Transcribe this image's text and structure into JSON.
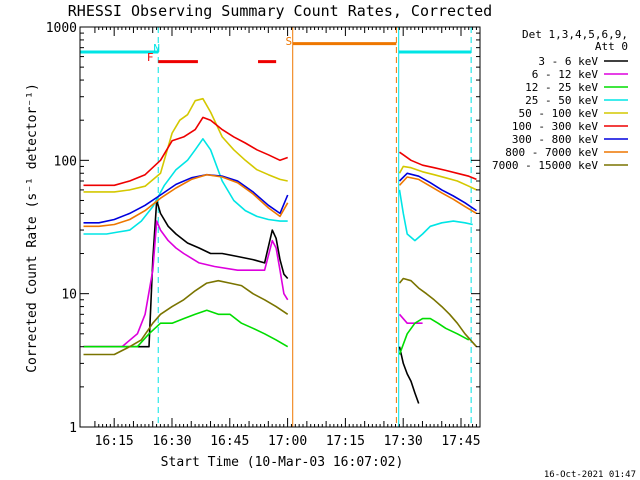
{
  "chart_data": {
    "type": "line",
    "title": "RHESSI Observing Summary Count Rates, Corrected",
    "xlabel": "Start Time (10-Mar-03 16:07:02)",
    "ylabel": "Corrected Count Rate (s⁻¹ detector⁻¹)",
    "y_scale": "log",
    "ylim": [
      1,
      1000
    ],
    "xlim_minutes": [
      -0.9,
      102.9
    ],
    "x_ticks": [
      {
        "label": "16:15",
        "minutes": 7.97
      },
      {
        "label": "16:30",
        "minutes": 22.97
      },
      {
        "label": "16:45",
        "minutes": 37.97
      },
      {
        "label": "17:00",
        "minutes": 52.97
      },
      {
        "label": "17:15",
        "minutes": 67.97
      },
      {
        "label": "17:30",
        "minutes": 82.97
      },
      {
        "label": "17:45",
        "minutes": 97.97
      }
    ],
    "y_ticks": [
      {
        "label": "1",
        "value": 1
      },
      {
        "label": "10",
        "value": 10
      },
      {
        "label": "100",
        "value": 100
      },
      {
        "label": "1000",
        "value": 1000
      }
    ],
    "legend_header": [
      "Det 1,3,4,5,6,9,",
      "Att 0"
    ],
    "legend_position": "right",
    "grid": false,
    "series": [
      {
        "name": "3 - 6 keV",
        "color": "#000000",
        "x": [
          0,
          4,
          10,
          17,
          18,
          19,
          20,
          22,
          24,
          27,
          30,
          33,
          36,
          40,
          44,
          47,
          49,
          50,
          51,
          52,
          53,
          82,
          83,
          84,
          85,
          86,
          87
        ],
        "y": [
          4,
          4,
          4,
          4,
          18,
          50,
          40,
          32,
          28,
          24,
          22,
          20,
          20,
          19,
          18,
          17,
          30,
          26,
          18,
          14,
          13,
          4,
          3,
          2.5,
          2.2,
          1.8,
          1.5
        ]
      },
      {
        "name": "6 - 12 keV",
        "color": "#dd00dd",
        "x": [
          0,
          10,
          14,
          16,
          18,
          19,
          20,
          22,
          24,
          26,
          30,
          34,
          40,
          44,
          47,
          49,
          50,
          51,
          52,
          53,
          82,
          84,
          86,
          88
        ],
        "y": [
          4,
          4,
          5,
          7,
          15,
          35,
          30,
          25,
          22,
          20,
          17,
          16,
          15,
          15,
          15,
          25,
          22,
          15,
          10,
          9,
          7,
          6,
          6,
          6
        ]
      },
      {
        "name": "12 - 25 keV",
        "color": "#00dd00",
        "x": [
          0,
          10,
          14,
          17,
          20,
          23,
          26,
          29,
          32,
          35,
          38,
          41,
          44,
          47,
          50,
          53,
          82,
          84,
          86,
          88,
          90,
          92,
          94,
          97,
          100
        ],
        "y": [
          4,
          4,
          4,
          5,
          6,
          6,
          6.5,
          7,
          7.5,
          7,
          7,
          6,
          5.5,
          5,
          4.5,
          4,
          3.5,
          5,
          6,
          6.5,
          6.5,
          6,
          5.5,
          5,
          4.5
        ]
      },
      {
        "name": "25 - 50 keV",
        "color": "#00e5e5",
        "x": [
          0,
          3,
          6,
          9,
          12,
          15,
          18,
          21,
          24,
          27,
          29,
          31,
          33,
          36,
          39,
          42,
          45,
          48,
          51,
          53,
          82,
          83,
          84,
          86,
          88,
          90,
          93,
          96,
          99,
          101
        ],
        "y": [
          28,
          28,
          28,
          29,
          30,
          35,
          45,
          65,
          85,
          100,
          120,
          145,
          120,
          70,
          50,
          42,
          38,
          36,
          35,
          35,
          60,
          40,
          28,
          25,
          28,
          32,
          34,
          35,
          34,
          33
        ]
      },
      {
        "name": "50 - 100 keV",
        "color": "#d4c800",
        "x": [
          0,
          4,
          8,
          12,
          16,
          20,
          23,
          25,
          27,
          29,
          31,
          33,
          36,
          39,
          42,
          45,
          48,
          51,
          53,
          82,
          83,
          85,
          88,
          91,
          94,
          97,
          100,
          102
        ],
        "y": [
          58,
          58,
          58,
          60,
          64,
          80,
          160,
          200,
          220,
          280,
          290,
          230,
          150,
          120,
          100,
          85,
          78,
          72,
          70,
          80,
          90,
          88,
          82,
          78,
          74,
          70,
          64,
          60
        ]
      },
      {
        "name": "100 - 300 keV",
        "color": "#ee0000",
        "x": [
          0,
          4,
          8,
          12,
          16,
          20,
          23,
          26,
          29,
          31,
          33,
          36,
          39,
          42,
          45,
          48,
          51,
          53,
          82,
          83,
          85,
          88,
          91,
          94,
          97,
          100,
          102
        ],
        "y": [
          65,
          65,
          65,
          70,
          78,
          100,
          140,
          150,
          170,
          210,
          200,
          170,
          150,
          135,
          120,
          110,
          100,
          105,
          115,
          110,
          100,
          92,
          88,
          84,
          80,
          76,
          72
        ]
      },
      {
        "name": "300 - 800 keV",
        "color": "#0000dd",
        "x": [
          0,
          4,
          8,
          12,
          16,
          20,
          24,
          28,
          32,
          36,
          40,
          44,
          48,
          51,
          53,
          82,
          84,
          87,
          90,
          93,
          96,
          99,
          102
        ],
        "y": [
          34,
          34,
          36,
          40,
          46,
          55,
          66,
          74,
          78,
          76,
          70,
          58,
          46,
          40,
          55,
          70,
          80,
          76,
          68,
          60,
          54,
          48,
          42
        ]
      },
      {
        "name": "800 - 7000 keV",
        "color": "#ee7700",
        "x": [
          0,
          4,
          8,
          12,
          16,
          20,
          24,
          28,
          32,
          36,
          40,
          44,
          48,
          51,
          53,
          82,
          84,
          87,
          90,
          93,
          96,
          99,
          102
        ],
        "y": [
          32,
          32,
          33,
          36,
          42,
          52,
          62,
          72,
          78,
          75,
          68,
          56,
          44,
          38,
          48,
          65,
          75,
          72,
          64,
          57,
          51,
          45,
          40
        ]
      },
      {
        "name": "7000 - 15000 keV",
        "color": "#7a7400",
        "x": [
          0,
          4,
          8,
          12,
          15,
          18,
          20,
          23,
          26,
          29,
          32,
          35,
          38,
          41,
          44,
          47,
          50,
          53,
          82,
          83,
          85,
          87,
          89,
          91,
          93,
          95,
          97,
          99,
          102
        ],
        "y": [
          3.5,
          3.5,
          3.5,
          4,
          4.5,
          6,
          7,
          8,
          9,
          10.5,
          12,
          12.5,
          12,
          11.5,
          10,
          9,
          8,
          7,
          12,
          13,
          12.5,
          11,
          10,
          9,
          8,
          7,
          6,
          5,
          4
        ]
      }
    ],
    "annotations": [
      {
        "text": "N",
        "color": "#00e5e5",
        "x_minutes": 19
      },
      {
        "text": "F",
        "color": "#ee0000",
        "x_minutes": 17.3
      },
      {
        "text": "S",
        "color": "#ee7700",
        "x_minutes": 53.3
      }
    ],
    "flags": {
      "night_color": "#00e5e5",
      "flare_color": "#ee0000",
      "saa_color": "#ee7700",
      "night_level_y": 650,
      "flare_level_y": 550,
      "saa_level_y": 750,
      "night_bars": [
        [
          -0.9,
          19.4
        ],
        [
          81.8,
          100.6
        ]
      ],
      "flare_bars": [
        [
          19.4,
          29.7
        ],
        [
          45.3,
          50
        ]
      ],
      "saa_bars": [
        [
          54.3,
          81.2
        ]
      ],
      "night_lines": [
        {
          "minutes": -0.9,
          "style": "solid"
        },
        {
          "minutes": 19.4,
          "style": "dashed"
        },
        {
          "minutes": 81.8,
          "style": "solid"
        },
        {
          "minutes": 100.6,
          "style": "dashed"
        }
      ],
      "saa_lines": [
        {
          "minutes": 54.3,
          "style": "solid"
        },
        {
          "minutes": 81.2,
          "style": "dashed"
        }
      ]
    }
  },
  "footer": {
    "timestamp": "16-Oct-2021 01:47"
  }
}
